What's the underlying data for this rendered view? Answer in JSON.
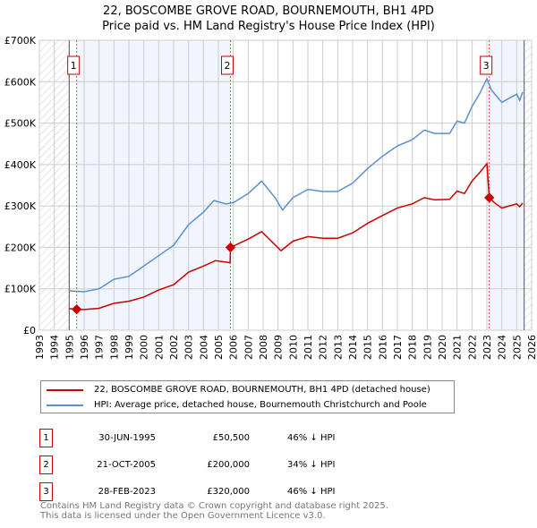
{
  "title_line1": "22, BOSCOMBE GROVE ROAD, BOURNEMOUTH, BH1 4PD",
  "title_line2": "Price paid vs. HM Land Registry's House Price Index (HPI)",
  "chart_data": {
    "type": "line",
    "ylim": [
      0,
      700000
    ],
    "xlim": [
      1993,
      2026
    ],
    "yticks": [
      0,
      100000,
      200000,
      300000,
      400000,
      500000,
      600000,
      700000
    ],
    "ytick_labels": [
      "£0",
      "£100K",
      "£200K",
      "£300K",
      "£400K",
      "£500K",
      "£600K",
      "£700K"
    ],
    "xtick_labels": [
      "1993",
      "1994",
      "1995",
      "1996",
      "1997",
      "1998",
      "1999",
      "2000",
      "2001",
      "2002",
      "2003",
      "2004",
      "2005",
      "2006",
      "2007",
      "2008",
      "2009",
      "2010",
      "2011",
      "2012",
      "2013",
      "2014",
      "2015",
      "2016",
      "2017",
      "2018",
      "2019",
      "2020",
      "2021",
      "2022",
      "2023",
      "2024",
      "2025",
      "2026"
    ],
    "series": [
      {
        "name": "22, BOSCOMBE GROVE ROAD, BOURNEMOUTH, BH1 4PD (detached house)",
        "color": "#cc0000",
        "x": [
          1995.0,
          1995.5,
          1996,
          1997,
          1998,
          1999,
          2000,
          2001,
          2002,
          2003,
          2004,
          2004.8,
          2005.79,
          2005.81,
          2007,
          2007.9,
          2009.2,
          2010,
          2011,
          2012,
          2013,
          2014,
          2015,
          2016,
          2017,
          2018,
          2018.8,
          2019.5,
          2020.5,
          2021,
          2021.5,
          2022,
          2022.5,
          2023.0,
          2023.16,
          2023.5,
          2024,
          2024.5,
          2025,
          2025.2,
          2025.4
        ],
        "y": [
          52000,
          50500,
          50000,
          53000,
          65000,
          70000,
          80000,
          97000,
          110000,
          140000,
          155000,
          168000,
          163000,
          200000,
          220000,
          238000,
          192000,
          215000,
          226000,
          222000,
          222000,
          235000,
          258000,
          277000,
          295000,
          305000,
          320000,
          315000,
          316000,
          336000,
          330000,
          360000,
          380000,
          402000,
          320000,
          308000,
          295000,
          300000,
          305000,
          298000,
          307000
        ]
      },
      {
        "name": "HPI: Average price, detached house, Bournemouth Christchurch and Poole",
        "color": "#5b8fd4",
        "x": [
          1995.0,
          1996,
          1997,
          1998,
          1999,
          2000,
          2001,
          2002,
          2003,
          2004,
          2004.7,
          2005.5,
          2006,
          2007,
          2007.9,
          2008.8,
          2009.3,
          2010,
          2011,
          2012,
          2013,
          2014,
          2015,
          2016,
          2017,
          2018,
          2018.8,
          2019.5,
          2020.5,
          2021,
          2021.5,
          2022,
          2022.5,
          2023,
          2023.3,
          2024,
          2024.5,
          2025,
          2025.2,
          2025.4
        ],
        "y": [
          95000,
          93000,
          100000,
          123000,
          130000,
          155000,
          180000,
          205000,
          255000,
          285000,
          313000,
          305000,
          308000,
          330000,
          360000,
          320000,
          290000,
          320000,
          340000,
          335000,
          335000,
          355000,
          390000,
          420000,
          445000,
          460000,
          483000,
          475000,
          475000,
          505000,
          500000,
          540000,
          570000,
          607000,
          580000,
          550000,
          560000,
          570000,
          555000,
          575000
        ]
      }
    ],
    "sales": [
      {
        "label": "1",
        "x": 2005.5,
        "xsale": 1995.5,
        "y": 50500
      },
      {
        "label": "2",
        "xsale": 2005.81,
        "y": 200000
      },
      {
        "label": "3",
        "xsale": 2023.16,
        "y": 320000
      }
    ]
  },
  "legend": {
    "red": "22, BOSCOMBE GROVE ROAD, BOURNEMOUTH, BH1 4PD (detached house)",
    "blue": "HPI: Average price, detached house, Bournemouth Christchurch and Poole"
  },
  "rows": [
    {
      "n": "1",
      "date": "30-JUN-1995",
      "price": "£50,500",
      "hpi": "46% ↓ HPI"
    },
    {
      "n": "2",
      "date": "21-OCT-2005",
      "price": "£200,000",
      "hpi": "34% ↓ HPI"
    },
    {
      "n": "3",
      "date": "28-FEB-2023",
      "price": "£320,000",
      "hpi": "46% ↓ HPI"
    }
  ],
  "footer1": "Contains HM Land Registry data © Crown copyright and database right 2025.",
  "footer2": "This data is licensed under the Open Government Licence v3.0."
}
